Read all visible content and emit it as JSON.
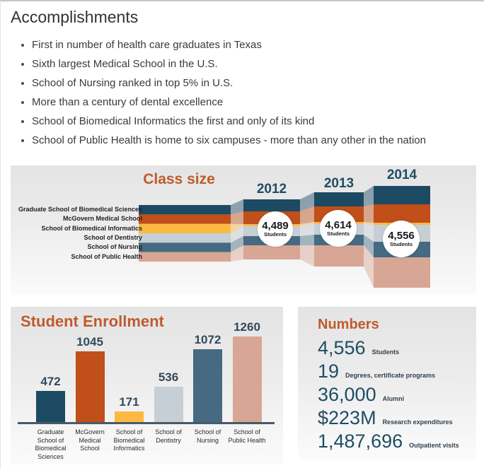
{
  "page": {
    "title": "Accomplishments",
    "bullets": [
      "First in number of health care graduates in Texas",
      "Sixth largest Medical School in the U.S.",
      "School of Nursing ranked in top 5% in U.S.",
      "More than a century of dental excellence",
      "School of Biomedical Informatics the first and only of its kind",
      "School of Public Health is home to six campuses - more than any other in the nation"
    ]
  },
  "colors": {
    "accent_orange": "#bf5b2d",
    "navy_text": "#204d63",
    "axis": "#485a68",
    "circle_bg": "#ffffff"
  },
  "flow": {
    "title": "Class size",
    "schools": [
      {
        "name": "Graduate School of Biomedical Sciences",
        "color": "#1d4a63"
      },
      {
        "name": "McGovern Medical School",
        "color": "#c04f1a"
      },
      {
        "name": "School of Biomedical Informatics",
        "color": "#fbb942"
      },
      {
        "name": "School of Dentistry",
        "color": "#c6cfd5"
      },
      {
        "name": "School of Nursing",
        "color": "#456a82"
      },
      {
        "name": "School of Public Health",
        "color": "#d8a694"
      }
    ],
    "years": [
      {
        "label": "2012",
        "total": "4,489",
        "unit": "Students"
      },
      {
        "label": "2013",
        "total": "4,614",
        "unit": "Students"
      },
      {
        "label": "2014",
        "total": "4,556",
        "unit": "Students"
      }
    ]
  },
  "enrollment": {
    "title": "Student Enrollment",
    "max_value": 1260,
    "bar_max_height": 123,
    "bars": [
      {
        "label": "Graduate School of Biomedical Sciences",
        "value": 472,
        "display": "472",
        "color": "#1d4a63"
      },
      {
        "label": "McGovern Medical School",
        "value": 1045,
        "display": "1045",
        "color": "#c04f1a"
      },
      {
        "label": "School of Biomedical Informatics",
        "value": 171,
        "display": "171",
        "color": "#fbb942"
      },
      {
        "label": "School of Dentistry",
        "value": 536,
        "display": "536",
        "color": "#c6cfd5"
      },
      {
        "label": "School of Nursing",
        "value": 1072,
        "display": "1072",
        "color": "#456a82"
      },
      {
        "label": "School of Public Health",
        "value": 1260,
        "display": "1260",
        "color": "#d8a694"
      }
    ]
  },
  "numbers": {
    "title": "Numbers",
    "stats": [
      {
        "value": "4,556",
        "label": "Students"
      },
      {
        "value": "19",
        "label": "Degrees, certificate programs"
      },
      {
        "value": "36,000",
        "label": "Alumni"
      },
      {
        "value": "$223M",
        "label": "Research expenditures"
      },
      {
        "value": "1,487,696",
        "label": "Outpatient visits"
      }
    ]
  },
  "chart_data": [
    {
      "type": "area",
      "subtype": "alluvial-flow",
      "title": "Class size",
      "categories": [
        "2012",
        "2013",
        "2014"
      ],
      "series": [
        {
          "name": "Graduate School of Biomedical Sciences",
          "color": "#1d4a63"
        },
        {
          "name": "McGovern Medical School",
          "color": "#c04f1a"
        },
        {
          "name": "School of Biomedical Informatics",
          "color": "#fbb942"
        },
        {
          "name": "School of Dentistry",
          "color": "#c6cfd5"
        },
        {
          "name": "School of Nursing",
          "color": "#456a82"
        },
        {
          "name": "School of Public Health",
          "color": "#d8a694"
        }
      ],
      "totals": [
        {
          "year": "2012",
          "students": 4489
        },
        {
          "year": "2013",
          "students": 4614
        },
        {
          "year": "2014",
          "students": 4556
        }
      ],
      "legend_position": "left",
      "grid": false
    },
    {
      "type": "bar",
      "title": "Student Enrollment",
      "categories": [
        "Graduate School of Biomedical Sciences",
        "McGovern Medical School",
        "School of Biomedical Informatics",
        "School of Dentistry",
        "School of Nursing",
        "School of Public Health"
      ],
      "values": [
        472,
        1045,
        171,
        536,
        1072,
        1260
      ],
      "colors": [
        "#1d4a63",
        "#c04f1a",
        "#fbb942",
        "#c6cfd5",
        "#456a82",
        "#d8a694"
      ],
      "data_labels": true,
      "xlabel": "",
      "ylabel": "",
      "ylim": [
        0,
        1260
      ],
      "grid": false
    },
    {
      "type": "table",
      "title": "Numbers",
      "rows": [
        [
          "4,556",
          "Students"
        ],
        [
          "19",
          "Degrees, certificate programs"
        ],
        [
          "36,000",
          "Alumni"
        ],
        [
          "$223M",
          "Research expenditures"
        ],
        [
          "1,487,696",
          "Outpatient visits"
        ]
      ]
    }
  ]
}
